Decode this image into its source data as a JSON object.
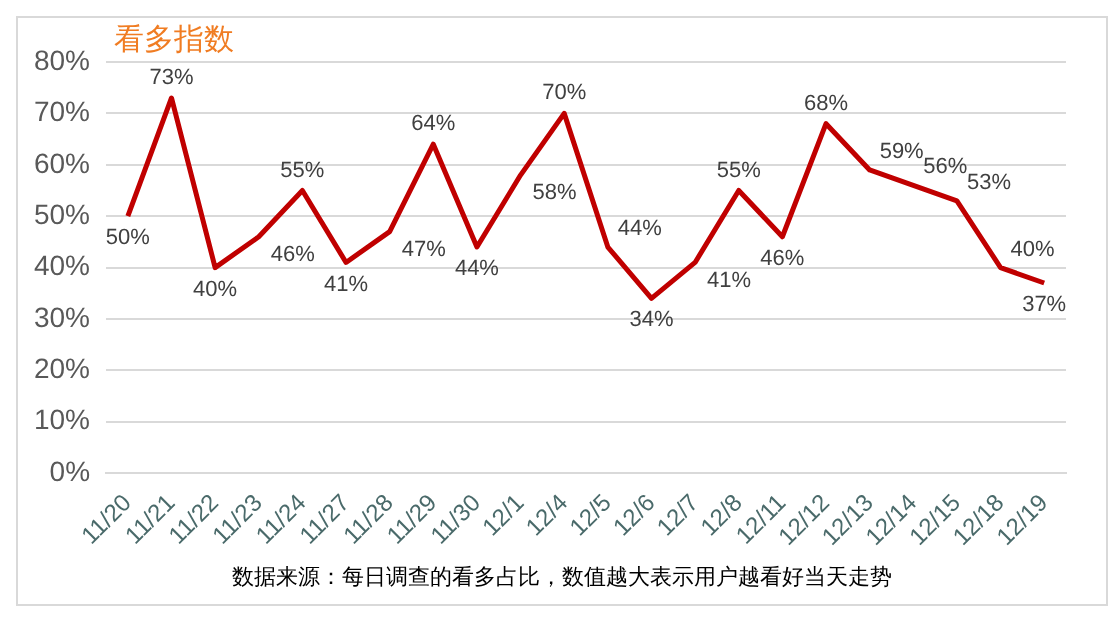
{
  "chart_data": {
    "type": "line",
    "title": "看多指数",
    "categories": [
      "11/20",
      "11/21",
      "11/22",
      "11/23",
      "11/24",
      "11/27",
      "11/28",
      "11/29",
      "11/30",
      "12/1",
      "12/4",
      "12/5",
      "12/6",
      "12/7",
      "12/8",
      "12/11",
      "12/12",
      "12/13",
      "12/14",
      "12/15",
      "12/18",
      "12/19"
    ],
    "series": [
      {
        "color": "#c00000",
        "values": [
          50,
          73,
          40,
          46,
          55,
          41,
          47,
          64,
          44,
          58,
          70,
          44,
          34,
          41,
          55,
          46,
          68,
          59,
          56,
          53,
          40,
          37
        ],
        "value_labels": [
          "50%",
          "73%",
          "40%",
          "46%",
          "55%",
          "41%",
          "47%",
          "64%",
          "44%",
          "58%",
          "70%",
          "44%",
          "34%",
          "41%",
          "55%",
          "46%",
          "68%",
          "59%",
          "56%",
          "53%",
          "40%",
          "37%"
        ]
      }
    ],
    "ylim": [
      0,
      80
    ],
    "yticks": [
      {
        "value": 0,
        "label": "0%"
      },
      {
        "value": 10,
        "label": "10%"
      },
      {
        "value": 20,
        "label": "20%"
      },
      {
        "value": 30,
        "label": "30%"
      },
      {
        "value": 40,
        "label": "40%"
      },
      {
        "value": 50,
        "label": "50%"
      },
      {
        "value": 60,
        "label": "60%"
      },
      {
        "value": 70,
        "label": "70%"
      },
      {
        "value": 80,
        "label": "80%"
      }
    ],
    "grid": "y",
    "legend": false,
    "marker": "none",
    "line_style": "solid",
    "annotations": [
      "数据来源：每日调查的看多占比，数值越大表示用户越看好当天走势"
    ]
  }
}
